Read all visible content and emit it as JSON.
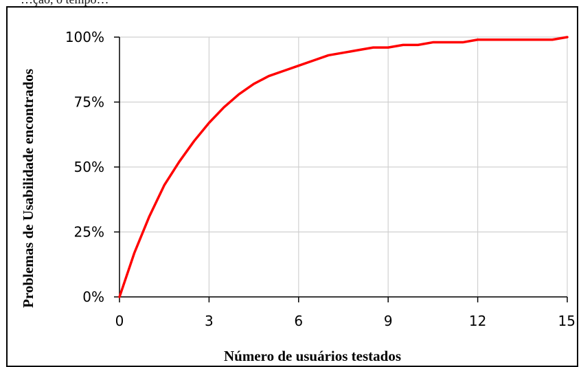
{
  "caption": "…ção, o tempo…",
  "chart_data": {
    "type": "line",
    "title": "",
    "xlabel": "Número de usuários testados",
    "ylabel": "Problemas de Usabilidade encontrados",
    "xlim": [
      0,
      15
    ],
    "ylim": [
      0,
      100
    ],
    "x_ticks": [
      0,
      3,
      6,
      9,
      12,
      15
    ],
    "y_ticks": [
      0,
      25,
      50,
      75,
      100
    ],
    "x_tick_labels": [
      "0",
      "3",
      "6",
      "9",
      "12",
      "15"
    ],
    "y_tick_labels": [
      "0%",
      "25%",
      "50%",
      "75%",
      "100%"
    ],
    "grid": true,
    "series": [
      {
        "color": "#ff0000",
        "x": [
          0,
          0.5,
          1,
          1.5,
          2,
          2.5,
          3,
          3.5,
          4,
          4.5,
          5,
          5.5,
          6,
          6.5,
          7,
          7.5,
          8,
          8.5,
          9,
          9.5,
          10,
          10.5,
          11,
          11.5,
          12,
          12.5,
          13,
          13.5,
          14,
          14.5,
          15
        ],
        "y": [
          0,
          17,
          31,
          43,
          52,
          60,
          67,
          73,
          78,
          82,
          85,
          87,
          89,
          91,
          93,
          94,
          95,
          96,
          96,
          97,
          97,
          98,
          98,
          98,
          99,
          99,
          99,
          99,
          99,
          99,
          100
        ]
      }
    ]
  }
}
